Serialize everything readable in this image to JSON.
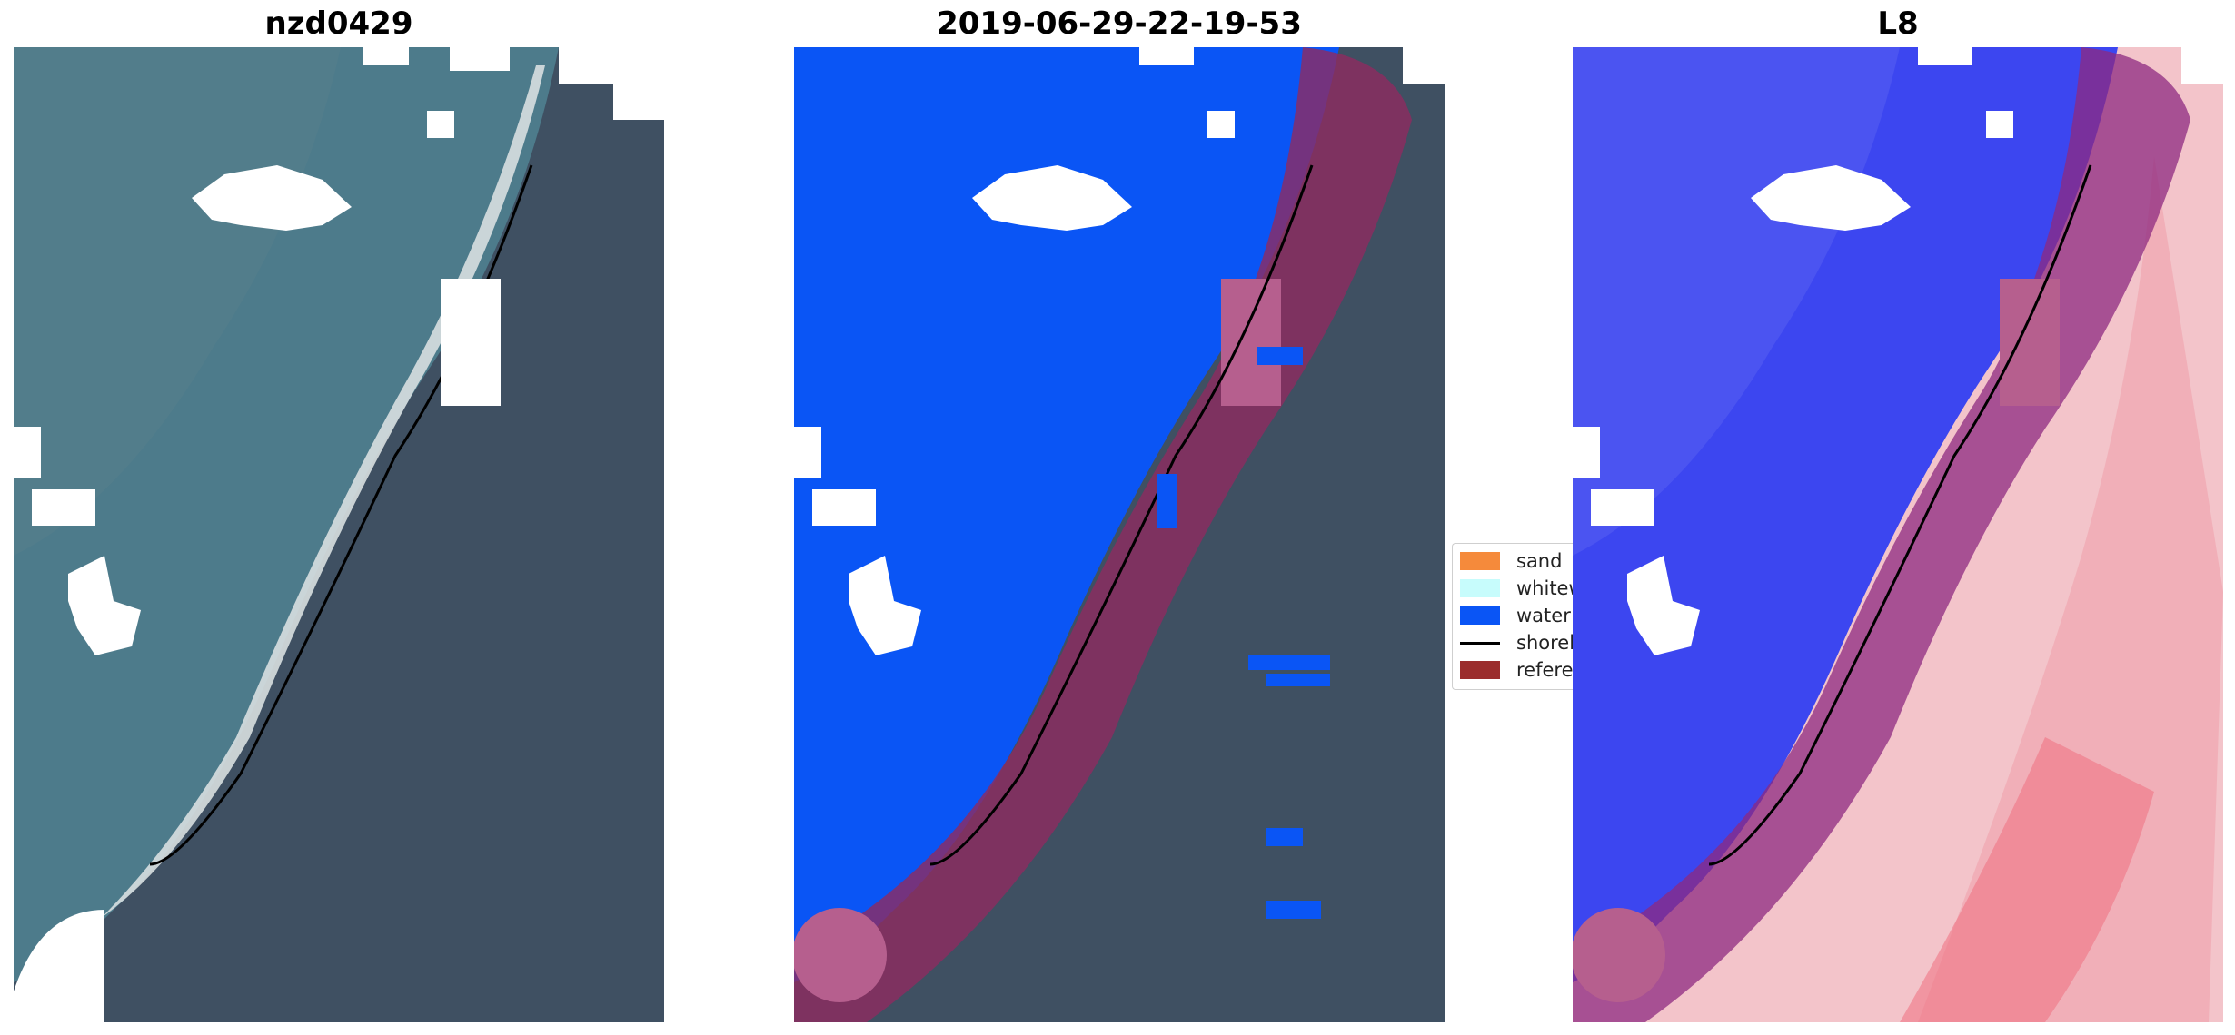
{
  "panels": [
    {
      "title": "nzd0429",
      "kind": "rgb-image"
    },
    {
      "title": "2019-06-29-22-19-53",
      "kind": "classified-image"
    },
    {
      "title": "L8",
      "kind": "index-image"
    }
  ],
  "legend": {
    "items": [
      {
        "label": "sand",
        "color": "#f58a3b"
      },
      {
        "label": "whitewater",
        "color": "#c7fcfc"
      },
      {
        "label": "water",
        "color": "#0a55f5"
      },
      {
        "label": "shoreline",
        "color": "#000000"
      },
      {
        "label": "reference shoreline buffer",
        "color": "#9b2d2d"
      }
    ]
  },
  "colors": {
    "ocean": "#4f7d8c",
    "land": "#3e4f60",
    "water_class": "#0a55f5",
    "buffer": "#a0306e",
    "index_water": "#3b46f2",
    "index_land": "#f3b9c1"
  }
}
